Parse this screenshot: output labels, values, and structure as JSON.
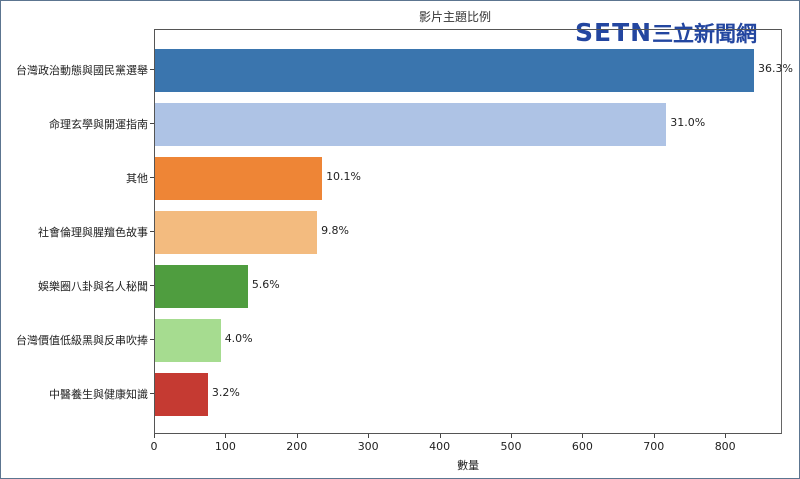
{
  "chart_data": {
    "type": "bar",
    "orientation": "horizontal",
    "title": "影片主題比例",
    "xlabel": "數量",
    "ylabel": "",
    "xlim": [
      0,
      880
    ],
    "xticks": [
      0,
      100,
      200,
      300,
      400,
      500,
      600,
      700,
      800
    ],
    "grid": false,
    "categories": [
      "台灣政治動態與國民黨選舉",
      "命理玄學與開運指南",
      "其他",
      "社會倫理與腥羶色故事",
      "娛樂圈八卦與名人秘聞",
      "台灣價值低級黑與反串吹捧",
      "中醫養生與健康知識"
    ],
    "values": [
      839,
      716,
      234,
      227,
      130,
      92,
      74
    ],
    "percent_labels": [
      "36.3%",
      "31.0%",
      "10.1%",
      "9.8%",
      "5.6%",
      "4.0%",
      "3.2%"
    ],
    "colors": [
      "#3a75ae",
      "#aec3e5",
      "#ee8536",
      "#f3bb7f",
      "#4f9d3f",
      "#a6dc90",
      "#c53a32"
    ]
  },
  "watermark": {
    "latin": "SETN",
    "cjk": "三立新聞網"
  }
}
